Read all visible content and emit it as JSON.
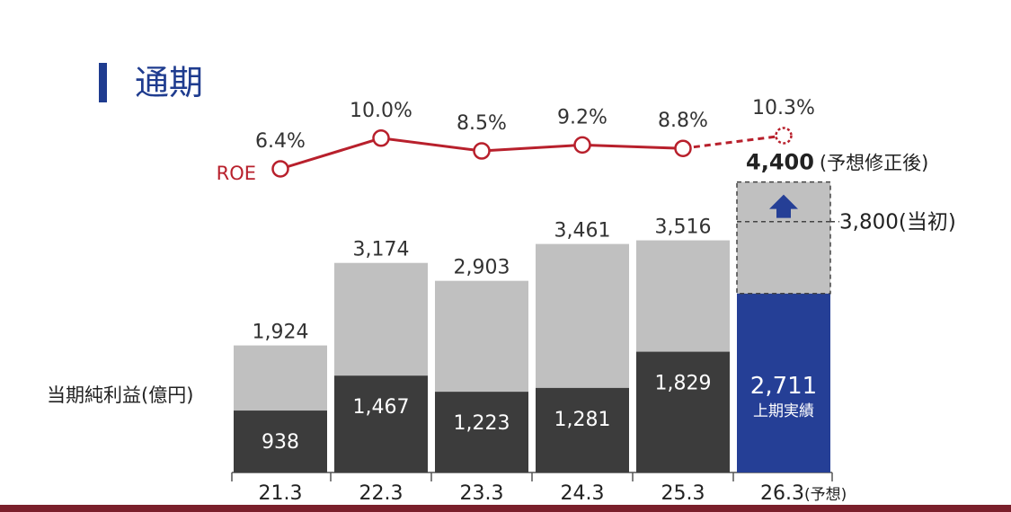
{
  "page": {
    "title": "通期",
    "ylabel": "当期純利益(億円)"
  },
  "chart_data": {
    "type": "bar",
    "stacked": true,
    "categories": [
      "21.3",
      "22.3",
      "23.3",
      "24.3",
      "25.3",
      "26.3(予想)"
    ],
    "series": [
      {
        "values": [
          938,
          1467,
          1223,
          1281,
          1829,
          2711
        ]
      },
      {
        "values": [
          986,
          1707,
          1680,
          2180,
          1687,
          1089
        ]
      }
    ],
    "totals": [
      "1,924",
      "3,174",
      "2,903",
      "3,461",
      "3,516",
      "3,800"
    ],
    "bottom_labels": [
      "938",
      "1,467",
      "1,223",
      "1,281",
      "1,829",
      "2,711"
    ],
    "forecast": {
      "first_half_label": "上期実績",
      "revised_value": 4400,
      "revised_label": "4,400",
      "revised_note": "(予想修正後)",
      "initial_value": 3800,
      "initial_label": "3,800(当初)"
    },
    "roe": {
      "name": "ROE",
      "values": [
        6.4,
        10.0,
        8.5,
        9.2,
        8.8,
        10.3
      ],
      "labels": [
        "6.4%",
        "10.0%",
        "8.5%",
        "9.2%",
        "8.8%",
        "10.3%"
      ],
      "last_is_forecast": true
    },
    "colors": {
      "lower": "#3c3c3c",
      "upper": "#c0c0c0",
      "forecast_lower": "#253f96",
      "roe": "#b8202c",
      "arrow": "#253f96"
    }
  }
}
